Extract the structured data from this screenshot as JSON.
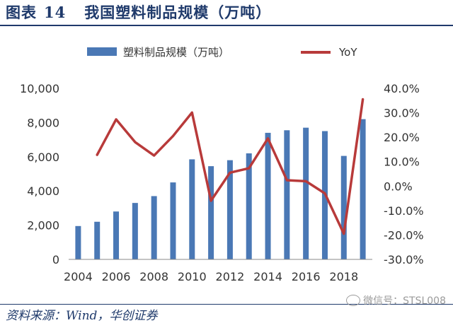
{
  "figure": {
    "label": "图表",
    "number": "14",
    "caption": "我国塑料制品规模（万吨）"
  },
  "source": "资料来源：Wind，华创证券",
  "watermark": "微信号：STSL008",
  "chart_data": {
    "type": "bar+line",
    "categories": [
      "2004",
      "2005",
      "2006",
      "2007",
      "2008",
      "2009",
      "2010",
      "2011",
      "2012",
      "2013",
      "2014",
      "2015",
      "2016",
      "2017",
      "2018",
      "2019"
    ],
    "x_tick_labels": [
      "2004",
      "2006",
      "2008",
      "2010",
      "2012",
      "2014",
      "2016",
      "2018"
    ],
    "series": [
      {
        "name": "塑料制品规模（万吨）",
        "type": "bar",
        "axis": "left",
        "color": "#4a78b5",
        "values": [
          1950,
          2200,
          2800,
          3300,
          3700,
          4500,
          5850,
          5450,
          5800,
          6200,
          7400,
          7550,
          7700,
          7500,
          6050,
          8200
        ]
      },
      {
        "name": "YoY",
        "type": "line",
        "axis": "right",
        "color": "#b83a3a",
        "values": [
          null,
          12.8,
          27.3,
          18.0,
          12.5,
          20.5,
          30.1,
          -6.0,
          5.5,
          7.3,
          19.5,
          2.4,
          2.0,
          -3.0,
          -19.5,
          35.5
        ]
      }
    ],
    "y_left": {
      "min": 0,
      "max": 10000,
      "ticks": [
        0,
        2000,
        4000,
        6000,
        8000,
        10000
      ],
      "tick_labels": [
        "0",
        "2,000",
        "4,000",
        "6,000",
        "8,000",
        "10,000"
      ]
    },
    "y_right": {
      "min": -30,
      "max": 40,
      "ticks": [
        -30,
        -20,
        -10,
        0,
        10,
        20,
        30,
        40
      ],
      "tick_labels": [
        "-30.0%",
        "-20.0%",
        "-10.0%",
        "0.0%",
        "10.0%",
        "20.0%",
        "30.0%",
        "40.0%"
      ]
    },
    "legend_position": "top",
    "grid": false
  }
}
